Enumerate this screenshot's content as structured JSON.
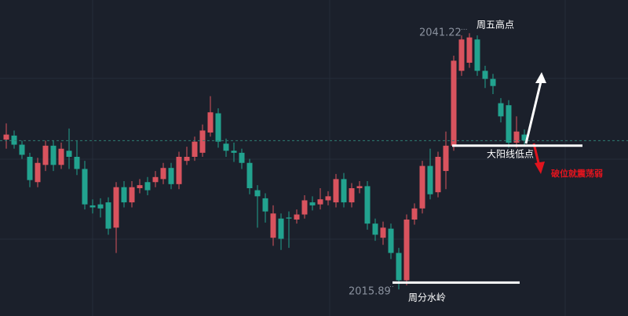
{
  "chart_data": {
    "type": "candlestick",
    "ylim": [
      2013.5,
      2044.5
    ],
    "up_color": "#d9535e",
    "down_color": "#22a38f",
    "open": [
      2030.7,
      2031.1,
      2030.2,
      2029.0,
      2026.5,
      2028.2,
      2030.1,
      2028.2,
      2029.6,
      2029.0,
      2027.8,
      2024.2,
      2024.3,
      2024.5,
      2022.0,
      2026.0,
      2024.5,
      2025.9,
      2026.5,
      2026.5,
      2026.8,
      2027.9,
      2026.3,
      2028.6,
      2029.0,
      2029.4,
      2031.4,
      2033.3,
      2030.3,
      2029.6,
      2029.4,
      2028.4,
      2025.7,
      2024.9,
      2021.0,
      2022.9,
      2023.0,
      2022.8,
      2023.3,
      2024.5,
      2024.3,
      2024.7,
      2024.5,
      2026.8,
      2024.5,
      2025.9,
      2026.1,
      2022.4,
      2021.0,
      2021.9,
      2019.5,
      2016.8,
      2022.8,
      2023.9,
      2028.1,
      2025.5,
      2027.6,
      2030.1,
      2037.5,
      2038.3,
      2040.6,
      2037.5,
      2036.7,
      2034.3,
      2034.1,
      2030.4,
      2031.2
    ],
    "high": [
      2032.3,
      2031.6,
      2030.6,
      2029.4,
      2028.9,
      2030.6,
      2030.6,
      2030.4,
      2031.8,
      2030.6,
      2028.6,
      2024.8,
      2024.9,
      2025.0,
      2026.5,
      2026.6,
      2026.6,
      2026.8,
      2027.0,
      2027.6,
      2028.4,
      2028.4,
      2029.5,
      2030.0,
      2031.0,
      2032.2,
      2035.0,
      2033.8,
      2030.8,
      2030.4,
      2029.8,
      2028.8,
      2026.2,
      2025.4,
      2024.2,
      2023.4,
      2023.6,
      2023.8,
      2025.2,
      2025.1,
      2025.9,
      2025.6,
      2027.3,
      2027.4,
      2026.4,
      2026.6,
      2026.6,
      2022.9,
      2022.6,
      2022.4,
      2020.0,
      2023.3,
      2024.4,
      2028.6,
      2029.8,
      2029.5,
      2031.5,
      2039.0,
      2041.0,
      2041.22,
      2041.0,
      2038.0,
      2037.2,
      2034.8,
      2034.6,
      2033.0,
      2031.7
    ],
    "low": [
      2029.8,
      2029.8,
      2028.8,
      2026.0,
      2026.0,
      2027.6,
      2027.6,
      2027.8,
      2027.8,
      2027.2,
      2023.8,
      2023.4,
      2023.0,
      2021.3,
      2019.5,
      2024.0,
      2024.0,
      2025.4,
      2025.2,
      2026.0,
      2026.3,
      2025.8,
      2025.8,
      2028.2,
      2028.6,
      2029.0,
      2031.0,
      2029.9,
      2029.0,
      2028.5,
      2027.8,
      2025.3,
      2022.0,
      2022.5,
      2020.2,
      2019.8,
      2020.0,
      2022.4,
      2022.9,
      2023.7,
      2023.8,
      2024.2,
      2024.0,
      2024.0,
      2024.0,
      2025.4,
      2021.8,
      2020.7,
      2020.3,
      2018.9,
      2015.89,
      2016.3,
      2022.3,
      2023.4,
      2024.8,
      2025.0,
      2025.8,
      2029.6,
      2037.0,
      2037.8,
      2037.0,
      2035.8,
      2035.2,
      2032.4,
      2029.9,
      2029.9,
      2030.2
    ],
    "close": [
      2031.2,
      2030.2,
      2029.2,
      2026.7,
      2028.4,
      2030.1,
      2028.2,
      2029.8,
      2029.0,
      2027.8,
      2024.3,
      2024.0,
      2023.9,
      2021.9,
      2026.0,
      2024.5,
      2026.0,
      2026.2,
      2025.7,
      2027.0,
      2027.9,
      2026.3,
      2029.0,
      2029.0,
      2030.5,
      2031.6,
      2033.4,
      2030.5,
      2029.6,
      2029.4,
      2028.4,
      2025.9,
      2025.1,
      2023.6,
      2023.4,
      2020.9,
      2022.9,
      2023.3,
      2024.7,
      2024.2,
      2024.8,
      2025.1,
      2026.8,
      2024.5,
      2025.9,
      2026.1,
      2022.4,
      2021.3,
      2022.0,
      2019.5,
      2016.8,
      2022.8,
      2023.9,
      2028.1,
      2025.3,
      2029.0,
      2030.1,
      2038.5,
      2040.6,
      2040.8,
      2037.5,
      2036.7,
      2036.0,
      2033.0,
      2030.4,
      2031.5,
      2030.6
    ],
    "annotations": [
      "周五高点",
      "大阳线低点",
      "破位就震荡弱",
      "周分水岭"
    ]
  }
}
